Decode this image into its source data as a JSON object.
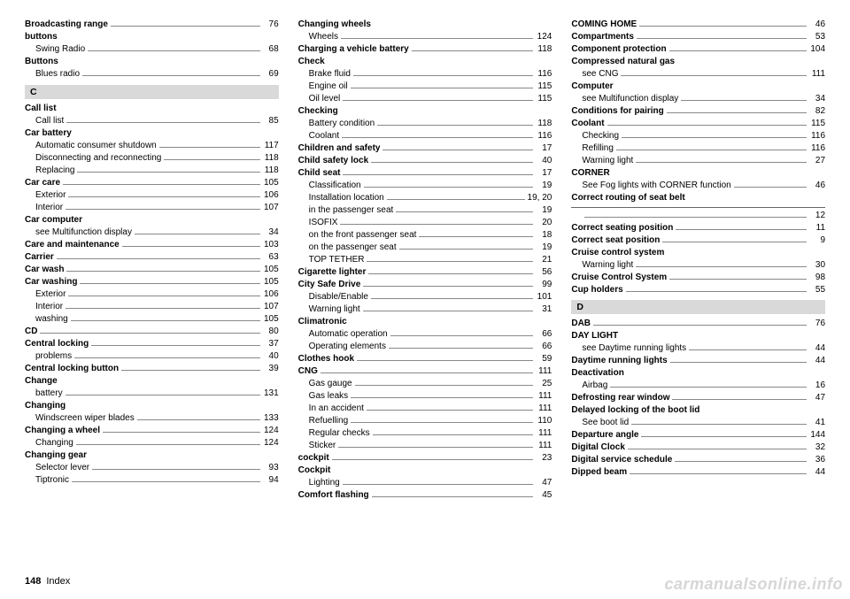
{
  "columns": [
    {
      "items": [
        {
          "type": "entry",
          "bold": true,
          "sub": false,
          "label": "Broadcasting range",
          "page": "76"
        },
        {
          "type": "entry",
          "bold": true,
          "sub": false,
          "label": "buttons",
          "page": ""
        },
        {
          "type": "entry",
          "bold": false,
          "sub": true,
          "label": "Swing Radio",
          "page": "68"
        },
        {
          "type": "entry",
          "bold": true,
          "sub": false,
          "label": "Buttons",
          "page": ""
        },
        {
          "type": "entry",
          "bold": false,
          "sub": true,
          "label": "Blues radio",
          "page": "69"
        },
        {
          "type": "section",
          "label": "C"
        },
        {
          "type": "entry",
          "bold": true,
          "sub": false,
          "label": "Call list",
          "page": ""
        },
        {
          "type": "entry",
          "bold": false,
          "sub": true,
          "label": "Call list",
          "page": "85"
        },
        {
          "type": "entry",
          "bold": true,
          "sub": false,
          "label": "Car battery",
          "page": ""
        },
        {
          "type": "entry",
          "bold": false,
          "sub": true,
          "label": "Automatic consumer shutdown",
          "page": "117"
        },
        {
          "type": "entry",
          "bold": false,
          "sub": true,
          "label": "Disconnecting and reconnecting",
          "page": "118"
        },
        {
          "type": "entry",
          "bold": false,
          "sub": true,
          "label": "Replacing",
          "page": "118"
        },
        {
          "type": "entry",
          "bold": true,
          "sub": false,
          "label": "Car care",
          "page": "105"
        },
        {
          "type": "entry",
          "bold": false,
          "sub": true,
          "label": "Exterior",
          "page": "106"
        },
        {
          "type": "entry",
          "bold": false,
          "sub": true,
          "label": "Interior",
          "page": "107"
        },
        {
          "type": "entry",
          "bold": true,
          "sub": false,
          "label": "Car computer",
          "page": ""
        },
        {
          "type": "entry",
          "bold": false,
          "sub": true,
          "label": "see Multifunction display",
          "page": "34"
        },
        {
          "type": "entry",
          "bold": true,
          "sub": false,
          "label": "Care and maintenance",
          "page": "103"
        },
        {
          "type": "entry",
          "bold": true,
          "sub": false,
          "label": "Carrier",
          "page": "63"
        },
        {
          "type": "entry",
          "bold": true,
          "sub": false,
          "label": "Car wash",
          "page": "105"
        },
        {
          "type": "entry",
          "bold": true,
          "sub": false,
          "label": "Car washing",
          "page": "105"
        },
        {
          "type": "entry",
          "bold": false,
          "sub": true,
          "label": "Exterior",
          "page": "106"
        },
        {
          "type": "entry",
          "bold": false,
          "sub": true,
          "label": "Interior",
          "page": "107"
        },
        {
          "type": "entry",
          "bold": false,
          "sub": true,
          "label": "washing",
          "page": "105"
        },
        {
          "type": "entry",
          "bold": true,
          "sub": false,
          "label": "CD",
          "page": "80"
        },
        {
          "type": "entry",
          "bold": true,
          "sub": false,
          "label": "Central locking",
          "page": "37"
        },
        {
          "type": "entry",
          "bold": false,
          "sub": true,
          "label": "problems",
          "page": "40"
        },
        {
          "type": "entry",
          "bold": true,
          "sub": false,
          "label": "Central locking button",
          "page": "39"
        },
        {
          "type": "entry",
          "bold": true,
          "sub": false,
          "label": "Change",
          "page": ""
        },
        {
          "type": "entry",
          "bold": false,
          "sub": true,
          "label": "battery",
          "page": "131"
        },
        {
          "type": "entry",
          "bold": true,
          "sub": false,
          "label": "Changing",
          "page": ""
        },
        {
          "type": "entry",
          "bold": false,
          "sub": true,
          "label": "Windscreen wiper blades",
          "page": "133"
        },
        {
          "type": "entry",
          "bold": true,
          "sub": false,
          "label": "Changing a wheel",
          "page": "124"
        },
        {
          "type": "entry",
          "bold": false,
          "sub": true,
          "label": "Changing",
          "page": "124"
        },
        {
          "type": "entry",
          "bold": true,
          "sub": false,
          "label": "Changing gear",
          "page": ""
        },
        {
          "type": "entry",
          "bold": false,
          "sub": true,
          "label": "Selector lever",
          "page": "93"
        },
        {
          "type": "entry",
          "bold": false,
          "sub": true,
          "label": "Tiptronic",
          "page": "94"
        }
      ]
    },
    {
      "items": [
        {
          "type": "entry",
          "bold": true,
          "sub": false,
          "label": "Changing wheels",
          "page": ""
        },
        {
          "type": "entry",
          "bold": false,
          "sub": true,
          "label": "Wheels",
          "page": "124"
        },
        {
          "type": "entry",
          "bold": true,
          "sub": false,
          "label": "Charging a vehicle battery",
          "page": "118"
        },
        {
          "type": "entry",
          "bold": true,
          "sub": false,
          "label": "Check",
          "page": ""
        },
        {
          "type": "entry",
          "bold": false,
          "sub": true,
          "label": "Brake fluid",
          "page": "116"
        },
        {
          "type": "entry",
          "bold": false,
          "sub": true,
          "label": "Engine oil",
          "page": "115"
        },
        {
          "type": "entry",
          "bold": false,
          "sub": true,
          "label": "Oil level",
          "page": "115"
        },
        {
          "type": "entry",
          "bold": true,
          "sub": false,
          "label": "Checking",
          "page": ""
        },
        {
          "type": "entry",
          "bold": false,
          "sub": true,
          "label": "Battery condition",
          "page": "118"
        },
        {
          "type": "entry",
          "bold": false,
          "sub": true,
          "label": "Coolant",
          "page": "116"
        },
        {
          "type": "entry",
          "bold": true,
          "sub": false,
          "label": "Children and safety",
          "page": "17"
        },
        {
          "type": "entry",
          "bold": true,
          "sub": false,
          "label": "Child safety lock",
          "page": "40"
        },
        {
          "type": "entry",
          "bold": true,
          "sub": false,
          "label": "Child seat",
          "page": "17"
        },
        {
          "type": "entry",
          "bold": false,
          "sub": true,
          "label": "Classification",
          "page": "19"
        },
        {
          "type": "entry",
          "bold": false,
          "sub": true,
          "label": "Installation location",
          "page": "19, 20"
        },
        {
          "type": "entry",
          "bold": false,
          "sub": true,
          "label": "in the passenger seat",
          "page": "19"
        },
        {
          "type": "entry",
          "bold": false,
          "sub": true,
          "label": "ISOFIX",
          "page": "20"
        },
        {
          "type": "entry",
          "bold": false,
          "sub": true,
          "label": "on the front passenger seat",
          "page": "18"
        },
        {
          "type": "entry",
          "bold": false,
          "sub": true,
          "label": "on the passenger seat",
          "page": "19"
        },
        {
          "type": "entry",
          "bold": false,
          "sub": true,
          "label": "TOP TETHER",
          "page": "21"
        },
        {
          "type": "entry",
          "bold": true,
          "sub": false,
          "label": "Cigarette lighter",
          "page": "56"
        },
        {
          "type": "entry",
          "bold": true,
          "sub": false,
          "label": "City Safe Drive",
          "page": "99"
        },
        {
          "type": "entry",
          "bold": false,
          "sub": true,
          "label": "Disable/Enable",
          "page": "101"
        },
        {
          "type": "entry",
          "bold": false,
          "sub": true,
          "label": "Warning light",
          "page": "31"
        },
        {
          "type": "entry",
          "bold": true,
          "sub": false,
          "label": "Climatronic",
          "page": ""
        },
        {
          "type": "entry",
          "bold": false,
          "sub": true,
          "label": "Automatic operation",
          "page": "66"
        },
        {
          "type": "entry",
          "bold": false,
          "sub": true,
          "label": "Operating elements",
          "page": "66"
        },
        {
          "type": "entry",
          "bold": true,
          "sub": false,
          "label": "Clothes hook",
          "page": "59"
        },
        {
          "type": "entry",
          "bold": true,
          "sub": false,
          "label": "CNG",
          "page": "111"
        },
        {
          "type": "entry",
          "bold": false,
          "sub": true,
          "label": "Gas gauge",
          "page": "25"
        },
        {
          "type": "entry",
          "bold": false,
          "sub": true,
          "label": "Gas leaks",
          "page": "111"
        },
        {
          "type": "entry",
          "bold": false,
          "sub": true,
          "label": "In an accident",
          "page": "111"
        },
        {
          "type": "entry",
          "bold": false,
          "sub": true,
          "label": "Refuelling",
          "page": "110"
        },
        {
          "type": "entry",
          "bold": false,
          "sub": true,
          "label": "Regular checks",
          "page": "111"
        },
        {
          "type": "entry",
          "bold": false,
          "sub": true,
          "label": "Sticker",
          "page": "111"
        },
        {
          "type": "entry",
          "bold": true,
          "sub": false,
          "label": "cockpit",
          "page": "23"
        },
        {
          "type": "entry",
          "bold": true,
          "sub": false,
          "label": "Cockpit",
          "page": ""
        },
        {
          "type": "entry",
          "bold": false,
          "sub": true,
          "label": "Lighting",
          "page": "47"
        },
        {
          "type": "entry",
          "bold": true,
          "sub": false,
          "label": "Comfort flashing",
          "page": "45"
        }
      ]
    },
    {
      "items": [
        {
          "type": "entry",
          "bold": true,
          "sub": false,
          "label": "COMING HOME",
          "page": "46"
        },
        {
          "type": "entry",
          "bold": true,
          "sub": false,
          "label": "Compartments",
          "page": "53"
        },
        {
          "type": "entry",
          "bold": true,
          "sub": false,
          "label": "Component protection",
          "page": "104"
        },
        {
          "type": "entry",
          "bold": true,
          "sub": false,
          "label": "Compressed natural gas",
          "page": ""
        },
        {
          "type": "entry",
          "bold": false,
          "sub": true,
          "label": "see CNG",
          "page": "111"
        },
        {
          "type": "entry",
          "bold": true,
          "sub": false,
          "label": "Computer",
          "page": ""
        },
        {
          "type": "entry",
          "bold": false,
          "sub": true,
          "label": "see Multifunction display",
          "page": "34"
        },
        {
          "type": "entry",
          "bold": true,
          "sub": false,
          "label": "Conditions for pairing",
          "page": "82"
        },
        {
          "type": "entry",
          "bold": true,
          "sub": false,
          "label": "Coolant",
          "page": "115"
        },
        {
          "type": "entry",
          "bold": false,
          "sub": true,
          "label": "Checking",
          "page": "116"
        },
        {
          "type": "entry",
          "bold": false,
          "sub": true,
          "label": "Refilling",
          "page": "116"
        },
        {
          "type": "entry",
          "bold": false,
          "sub": true,
          "label": "Warning light",
          "page": "27"
        },
        {
          "type": "entry",
          "bold": true,
          "sub": false,
          "label": "CORNER",
          "page": ""
        },
        {
          "type": "entry",
          "bold": false,
          "sub": true,
          "label": "See Fog lights with CORNER function",
          "page": "46"
        },
        {
          "type": "entry",
          "bold": true,
          "sub": false,
          "label": "Correct routing of seat belt",
          "page": ""
        },
        {
          "type": "line"
        },
        {
          "type": "entry",
          "bold": false,
          "sub": true,
          "label": "",
          "page": "12"
        },
        {
          "type": "entry",
          "bold": true,
          "sub": false,
          "label": "Correct seating position",
          "page": "11"
        },
        {
          "type": "entry",
          "bold": true,
          "sub": false,
          "label": "Correct seat position",
          "page": "9"
        },
        {
          "type": "entry",
          "bold": true,
          "sub": false,
          "label": "Cruise control system",
          "page": ""
        },
        {
          "type": "entry",
          "bold": false,
          "sub": true,
          "label": "Warning light",
          "page": "30"
        },
        {
          "type": "entry",
          "bold": true,
          "sub": false,
          "label": "Cruise Control System",
          "page": "98"
        },
        {
          "type": "entry",
          "bold": true,
          "sub": false,
          "label": "Cup holders",
          "page": "55"
        },
        {
          "type": "section",
          "label": "D"
        },
        {
          "type": "entry",
          "bold": true,
          "sub": false,
          "label": "DAB",
          "page": "76"
        },
        {
          "type": "entry",
          "bold": true,
          "sub": false,
          "label": "DAY LIGHT",
          "page": ""
        },
        {
          "type": "entry",
          "bold": false,
          "sub": true,
          "label": "see Daytime running lights",
          "page": "44"
        },
        {
          "type": "entry",
          "bold": true,
          "sub": false,
          "label": "Daytime running lights",
          "page": "44"
        },
        {
          "type": "entry",
          "bold": true,
          "sub": false,
          "label": "Deactivation",
          "page": ""
        },
        {
          "type": "entry",
          "bold": false,
          "sub": true,
          "label": "Airbag",
          "page": "16"
        },
        {
          "type": "entry",
          "bold": true,
          "sub": false,
          "label": "Defrosting rear window",
          "page": "47"
        },
        {
          "type": "entry",
          "bold": true,
          "sub": false,
          "label": "Delayed locking of the boot lid",
          "page": ""
        },
        {
          "type": "entry",
          "bold": false,
          "sub": true,
          "label": "See boot lid",
          "page": "41"
        },
        {
          "type": "entry",
          "bold": true,
          "sub": false,
          "label": "Departure angle",
          "page": "144"
        },
        {
          "type": "entry",
          "bold": true,
          "sub": false,
          "label": "Digital Clock",
          "page": "32"
        },
        {
          "type": "entry",
          "bold": true,
          "sub": false,
          "label": "Digital service schedule",
          "page": "36"
        },
        {
          "type": "entry",
          "bold": true,
          "sub": false,
          "label": "Dipped beam",
          "page": "44"
        }
      ]
    }
  ],
  "footer": {
    "page": "148",
    "label": "Index"
  },
  "watermark": "carmanualsonline.info"
}
